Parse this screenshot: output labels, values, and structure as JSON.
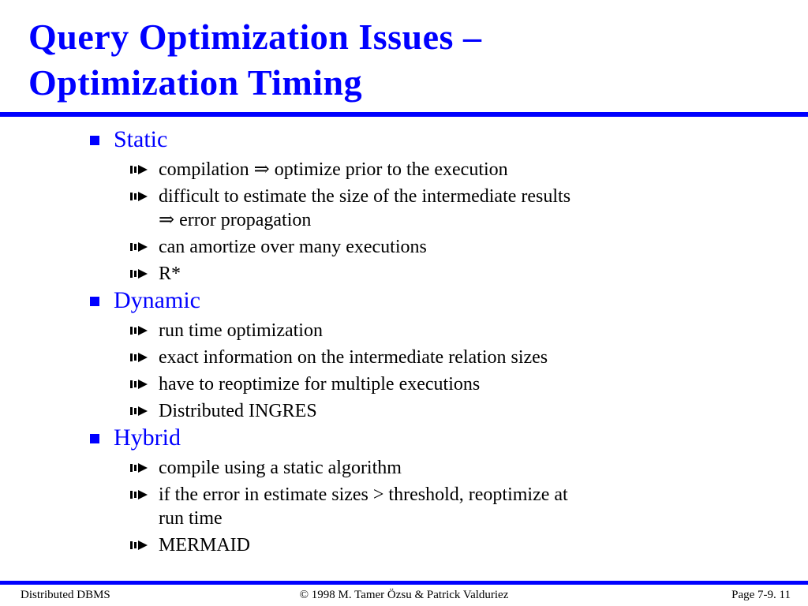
{
  "slide": {
    "title_line1": "Query Optimization Issues –",
    "title_line2": "Optimization Timing"
  },
  "colors": {
    "accent": "#0000ff",
    "text": "#000000",
    "background": "#ffffff"
  },
  "icons": {
    "section_bullet": "blue-square-icon",
    "item_bullet": "arrow-bullet-icon"
  },
  "sections": [
    {
      "heading": "Static",
      "items": [
        "compilation ⇒ optimize prior to the execution",
        "difficult to estimate the size of the intermediate results",
        "⇒ error propagation",
        "can amortize over many executions",
        "R*"
      ]
    },
    {
      "heading": "Dynamic",
      "items": [
        "run time optimization",
        "exact information on the intermediate relation sizes",
        "have to reoptimize for multiple executions",
        "Distributed INGRES"
      ]
    },
    {
      "heading": "Hybrid",
      "items": [
        "compile using a static algorithm",
        "if the error in estimate sizes > threshold, reoptimize at",
        "run time",
        "MERMAID"
      ]
    }
  ],
  "footer": {
    "left": "Distributed DBMS",
    "center": "© 1998 M. Tamer Özsu & Patrick Valduriez",
    "right": "Page 7-9. 11"
  }
}
